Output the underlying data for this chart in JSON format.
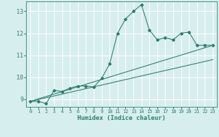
{
  "xlabel": "Humidex (Indice chaleur)",
  "ylabel": "",
  "bg_color": "#d6eeed",
  "grid_color": "#ffffff",
  "line_color": "#2d7d6e",
  "xlim": [
    -0.5,
    23.5
  ],
  "ylim": [
    8.65,
    13.45
  ],
  "yticks": [
    9,
    10,
    11,
    12,
    13
  ],
  "xticks": [
    0,
    1,
    2,
    3,
    4,
    5,
    6,
    7,
    8,
    9,
    10,
    11,
    12,
    13,
    14,
    15,
    16,
    17,
    18,
    19,
    20,
    21,
    22,
    23
  ],
  "line1_x": [
    0,
    1,
    2,
    3,
    4,
    5,
    6,
    7,
    8,
    9,
    10,
    11,
    12,
    13,
    14,
    15,
    16,
    17,
    18,
    19,
    20,
    21,
    22,
    23
  ],
  "line1_y": [
    8.9,
    8.9,
    8.8,
    9.4,
    9.35,
    9.5,
    9.6,
    9.6,
    9.55,
    9.95,
    10.6,
    12.0,
    12.65,
    13.0,
    13.3,
    12.15,
    11.7,
    11.8,
    11.7,
    12.0,
    12.05,
    11.45,
    11.45,
    11.45
  ],
  "line2_x": [
    0,
    23
  ],
  "line2_y": [
    8.9,
    11.45
  ],
  "line3_x": [
    0,
    23
  ],
  "line3_y": [
    8.9,
    10.8
  ],
  "marker": "D",
  "markersize": 2.0,
  "linewidth": 0.8
}
